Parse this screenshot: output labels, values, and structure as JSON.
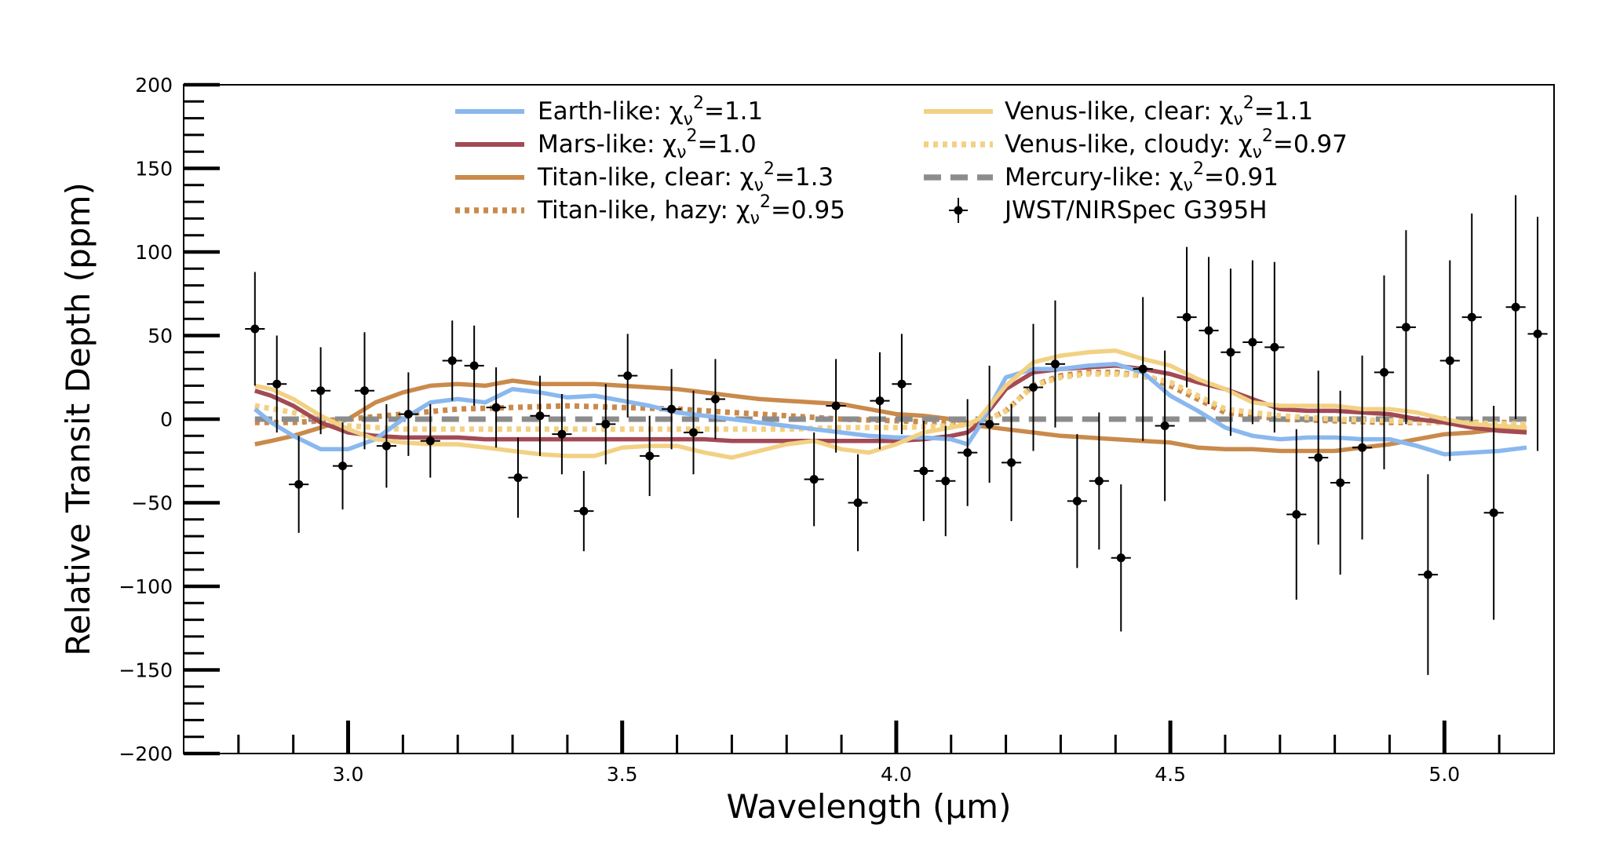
{
  "chart_data": {
    "type": "line",
    "xlabel": "Wavelength (μm)",
    "ylabel": "Relative Transit Depth (ppm)",
    "xlim": [
      2.7,
      5.2
    ],
    "ylim": [
      -200,
      200
    ],
    "xticks": [
      3.0,
      3.5,
      4.0,
      4.5,
      5.0
    ],
    "xtick_labels": [
      "3.0",
      "3.5",
      "4.0",
      "4.5",
      "5.0"
    ],
    "yticks": [
      -200,
      -150,
      -100,
      -50,
      0,
      50,
      100,
      150,
      200
    ],
    "ytick_labels": [
      "−200",
      "−150",
      "−100",
      "−50",
      "0",
      "50",
      "100",
      "150",
      "200"
    ],
    "legend_position": "top-center",
    "series": [
      {
        "name": "Earth-like: χ",
        "stat": "=1.1",
        "style": "solid",
        "color": "#8ab8ee",
        "x": [
          2.83,
          2.86,
          2.9,
          2.95,
          3.0,
          3.05,
          3.1,
          3.15,
          3.2,
          3.25,
          3.3,
          3.35,
          3.4,
          3.45,
          3.5,
          3.55,
          3.6,
          3.65,
          3.7,
          3.75,
          3.8,
          3.85,
          3.9,
          3.95,
          4.0,
          4.05,
          4.1,
          4.13,
          4.15,
          4.2,
          4.25,
          4.3,
          4.35,
          4.4,
          4.45,
          4.5,
          4.55,
          4.6,
          4.65,
          4.7,
          4.75,
          4.8,
          4.85,
          4.9,
          4.95,
          5.0,
          5.05,
          5.1,
          5.15
        ],
        "y": [
          6,
          -2,
          -10,
          -18,
          -18,
          -12,
          0,
          10,
          12,
          10,
          18,
          16,
          13,
          14,
          11,
          8,
          4,
          2,
          0,
          -2,
          -4,
          -6,
          -8,
          -10,
          -11,
          -11,
          -12,
          -15,
          -5,
          25,
          30,
          30,
          32,
          33,
          28,
          14,
          5,
          -5,
          -10,
          -12,
          -11,
          -11,
          -12,
          -12,
          -16,
          -21,
          -20,
          -19,
          -17
        ]
      },
      {
        "name": "Mars-like: χ",
        "stat": "=1.0",
        "style": "solid",
        "color": "#a34a55",
        "x": [
          2.83,
          2.86,
          2.9,
          2.95,
          3.0,
          3.05,
          3.1,
          3.15,
          3.2,
          3.25,
          3.3,
          3.35,
          3.4,
          3.45,
          3.5,
          3.55,
          3.6,
          3.65,
          3.7,
          3.75,
          3.8,
          3.85,
          3.9,
          3.95,
          4.0,
          4.05,
          4.1,
          4.13,
          4.15,
          4.2,
          4.25,
          4.3,
          4.35,
          4.4,
          4.45,
          4.5,
          4.55,
          4.6,
          4.65,
          4.7,
          4.75,
          4.8,
          4.85,
          4.9,
          4.95,
          5.0,
          5.05,
          5.1,
          5.15
        ],
        "y": [
          17,
          14,
          8,
          -2,
          -8,
          -10,
          -11,
          -11,
          -11,
          -12,
          -12,
          -12,
          -12,
          -12,
          -12,
          -12,
          -12,
          -12,
          -13,
          -13,
          -13,
          -13,
          -13,
          -13,
          -13,
          -12,
          -10,
          -8,
          -3,
          18,
          28,
          30,
          31,
          32,
          30,
          27,
          22,
          18,
          12,
          6,
          5,
          5,
          4,
          3,
          0,
          -2,
          -5,
          -7,
          -8
        ]
      },
      {
        "name": "Titan-like, clear: χ",
        "stat": "=1.3",
        "style": "solid",
        "color": "#c98a4b",
        "x": [
          2.83,
          2.86,
          2.9,
          2.95,
          3.0,
          3.05,
          3.1,
          3.15,
          3.2,
          3.25,
          3.3,
          3.35,
          3.4,
          3.45,
          3.5,
          3.55,
          3.6,
          3.65,
          3.7,
          3.75,
          3.8,
          3.85,
          3.9,
          3.95,
          4.0,
          4.05,
          4.1,
          4.13,
          4.15,
          4.2,
          4.25,
          4.3,
          4.35,
          4.4,
          4.45,
          4.5,
          4.55,
          4.6,
          4.65,
          4.7,
          4.75,
          4.8,
          4.85,
          4.9,
          4.95,
          5.0,
          5.05,
          5.1,
          5.15
        ],
        "y": [
          -15,
          -13,
          -10,
          -5,
          0,
          10,
          16,
          20,
          21,
          20,
          23,
          21,
          21,
          21,
          20,
          19,
          18,
          16,
          14,
          12,
          11,
          10,
          9,
          6,
          3,
          2,
          0,
          -2,
          -4,
          -6,
          -8,
          -10,
          -11,
          -12,
          -13,
          -14,
          -17,
          -18,
          -18,
          -19,
          -19,
          -19,
          -17,
          -15,
          -12,
          -9,
          -8,
          -6,
          -6
        ]
      },
      {
        "name": "Titan-like, hazy: χ",
        "stat": "=0.95",
        "style": "dotted",
        "color": "#c98a4b",
        "x": [
          2.83,
          2.9,
          3.0,
          3.1,
          3.2,
          3.3,
          3.4,
          3.5,
          3.6,
          3.7,
          3.8,
          3.9,
          4.0,
          4.1,
          4.15,
          4.2,
          4.25,
          4.3,
          4.35,
          4.4,
          4.45,
          4.5,
          4.55,
          4.6,
          4.7,
          4.8,
          4.9,
          5.0,
          5.15
        ],
        "y": [
          -2,
          -2,
          0,
          3,
          6,
          7,
          8,
          7,
          6,
          4,
          2,
          0,
          -1,
          -2,
          -3,
          5,
          20,
          26,
          28,
          28,
          26,
          20,
          12,
          4,
          0,
          -1,
          -2,
          -2,
          -2
        ]
      },
      {
        "name": "Venus-like, clear: χ",
        "stat": "=1.1",
        "style": "solid",
        "color": "#f2d184",
        "x": [
          2.83,
          2.86,
          2.9,
          2.95,
          3.0,
          3.05,
          3.1,
          3.15,
          3.2,
          3.25,
          3.3,
          3.35,
          3.4,
          3.45,
          3.5,
          3.55,
          3.6,
          3.65,
          3.7,
          3.75,
          3.8,
          3.85,
          3.9,
          3.95,
          4.0,
          4.05,
          4.1,
          4.13,
          4.15,
          4.2,
          4.25,
          4.3,
          4.35,
          4.4,
          4.45,
          4.5,
          4.55,
          4.6,
          4.65,
          4.7,
          4.75,
          4.8,
          4.85,
          4.9,
          4.95,
          5.0,
          5.05,
          5.1,
          5.15
        ],
        "y": [
          20,
          18,
          12,
          2,
          -6,
          -12,
          -14,
          -15,
          -15,
          -17,
          -19,
          -21,
          -22,
          -22,
          -17,
          -16,
          -16,
          -20,
          -23,
          -19,
          -15,
          -13,
          -18,
          -20,
          -15,
          -8,
          -5,
          -3,
          0,
          20,
          34,
          38,
          40,
          41,
          36,
          32,
          24,
          18,
          10,
          8,
          8,
          8,
          6,
          6,
          4,
          0,
          -3,
          -4,
          -5
        ]
      },
      {
        "name": "Venus-like, cloudy: χ",
        "stat": "=0.97",
        "style": "dotted",
        "color": "#f2d184",
        "x": [
          2.83,
          2.9,
          3.0,
          3.1,
          3.2,
          3.3,
          3.4,
          3.5,
          3.6,
          3.7,
          3.8,
          3.9,
          4.0,
          4.1,
          4.15,
          4.2,
          4.25,
          4.3,
          4.35,
          4.4,
          4.45,
          4.5,
          4.55,
          4.6,
          4.7,
          4.8,
          4.9,
          5.0,
          5.15
        ],
        "y": [
          8,
          4,
          -4,
          -6,
          -6,
          -6,
          -6,
          -6,
          -6,
          -6,
          -6,
          -5,
          -5,
          -4,
          -3,
          5,
          20,
          25,
          27,
          27,
          26,
          22,
          14,
          6,
          2,
          0,
          -1,
          -2,
          -3
        ]
      },
      {
        "name": "Mercury-like: χ",
        "stat": "=0.91",
        "style": "dashed",
        "color": "#8c8c8c",
        "x": [
          2.83,
          5.15
        ],
        "y": [
          0,
          0
        ]
      }
    ],
    "observations": {
      "name": "JWST/NIRSpec G395H",
      "x": [
        2.83,
        2.87,
        2.91,
        2.95,
        2.99,
        3.03,
        3.07,
        3.11,
        3.15,
        3.19,
        3.23,
        3.27,
        3.31,
        3.35,
        3.39,
        3.43,
        3.47,
        3.51,
        3.55,
        3.59,
        3.63,
        3.67,
        3.89,
        3.85,
        3.93,
        3.97,
        4.01,
        4.05,
        4.09,
        4.13,
        4.17,
        4.21,
        4.25,
        4.29,
        4.33,
        4.37,
        4.41,
        4.45,
        4.49,
        4.53,
        4.57,
        4.61,
        4.65,
        4.69,
        4.73,
        4.77,
        4.81,
        4.85,
        4.89,
        4.93,
        4.97,
        5.01,
        5.05,
        5.09,
        5.13,
        5.17
      ],
      "y": [
        54,
        21,
        -39,
        17,
        -28,
        17,
        -16,
        3,
        -13,
        35,
        32,
        7,
        -35,
        2,
        -9,
        -55,
        -3,
        26,
        -22,
        6,
        -8,
        12,
        8,
        -36,
        -50,
        11,
        21,
        -31,
        -37,
        -20,
        -3,
        -26,
        19,
        33,
        -49,
        -37,
        -83,
        30,
        -4,
        61,
        53,
        40,
        46,
        43,
        -57,
        -23,
        -38,
        -17,
        28,
        55,
        -93,
        35,
        61,
        -56,
        67,
        51
      ],
      "err": [
        34,
        29,
        29,
        26,
        26,
        35,
        25,
        25,
        22,
        24,
        24,
        24,
        24,
        24,
        24,
        24,
        24,
        25,
        24,
        24,
        25,
        24,
        28,
        28,
        29,
        29,
        30,
        30,
        33,
        32,
        35,
        35,
        38,
        38,
        40,
        41,
        44,
        43,
        45,
        42,
        44,
        50,
        49,
        51,
        51,
        52,
        55,
        55,
        58,
        58,
        60,
        60,
        62,
        64,
        67,
        70
      ],
      "xerr": 0.018
    }
  }
}
